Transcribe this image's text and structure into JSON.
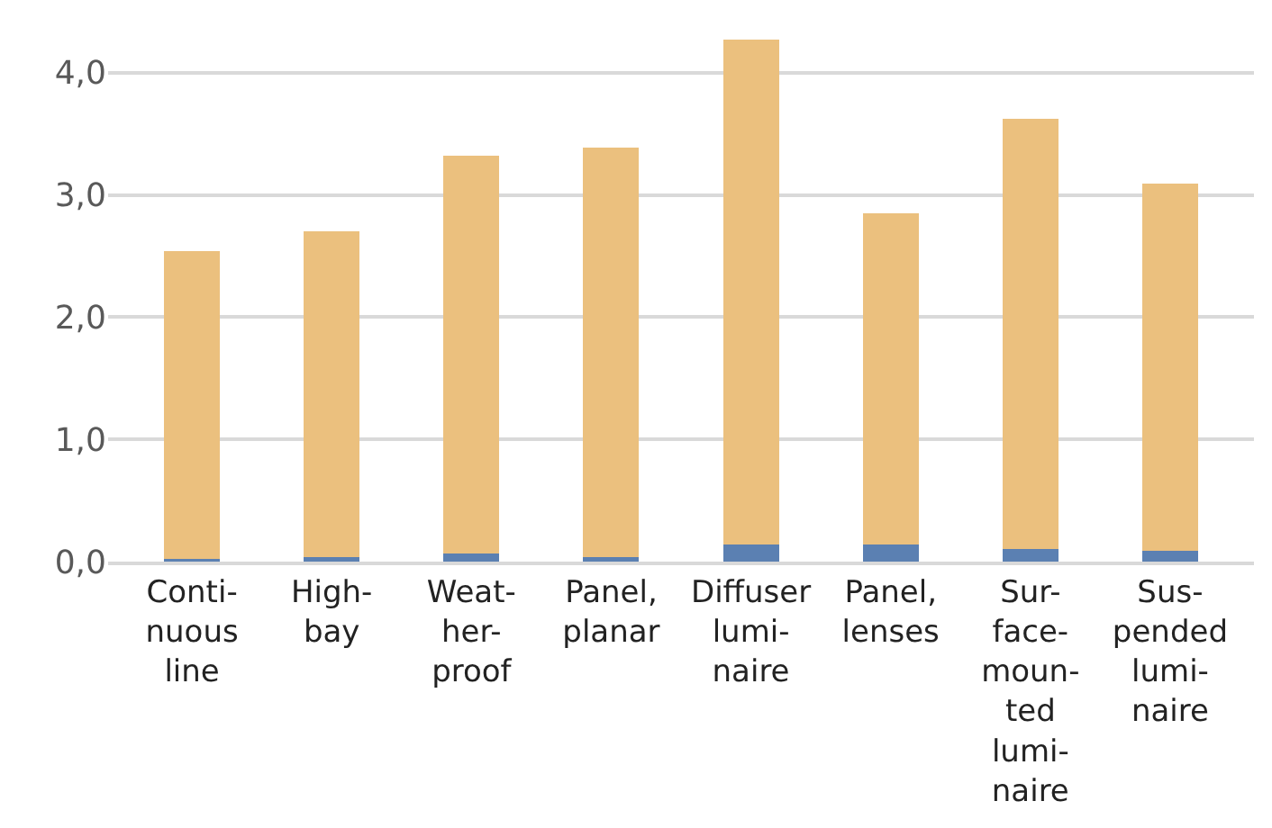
{
  "chart_data": {
    "type": "bar",
    "stacked": true,
    "categories": [
      "Conti-\nnuous\nline",
      "High-\nbay",
      "Weat-\nher-\nproof",
      "Panel,\nplanar",
      "Diffuser\nlumi-\nnaire",
      "Panel,\nlenses",
      "Sur-\nface-\nmoun-\nted\nlumi-\nnaire",
      "Sus-\npended\nlumi-\nnaire"
    ],
    "series": [
      {
        "color": "#5b80b2",
        "values": [
          0.02,
          0.04,
          0.07,
          0.04,
          0.14,
          0.14,
          0.1,
          0.09
        ]
      },
      {
        "color": "#ebc07e",
        "values": [
          2.52,
          2.66,
          3.25,
          3.35,
          4.13,
          2.71,
          3.52,
          3.0
        ]
      }
    ],
    "ylim": [
      0,
      4.3
    ],
    "yticks": [
      {
        "value": 0,
        "label": "0,0"
      },
      {
        "value": 1,
        "label": "1,0"
      },
      {
        "value": 2,
        "label": "2,0"
      },
      {
        "value": 3,
        "label": "3,0"
      },
      {
        "value": 4,
        "label": "4,0"
      }
    ],
    "grid": "y",
    "legend": false
  }
}
